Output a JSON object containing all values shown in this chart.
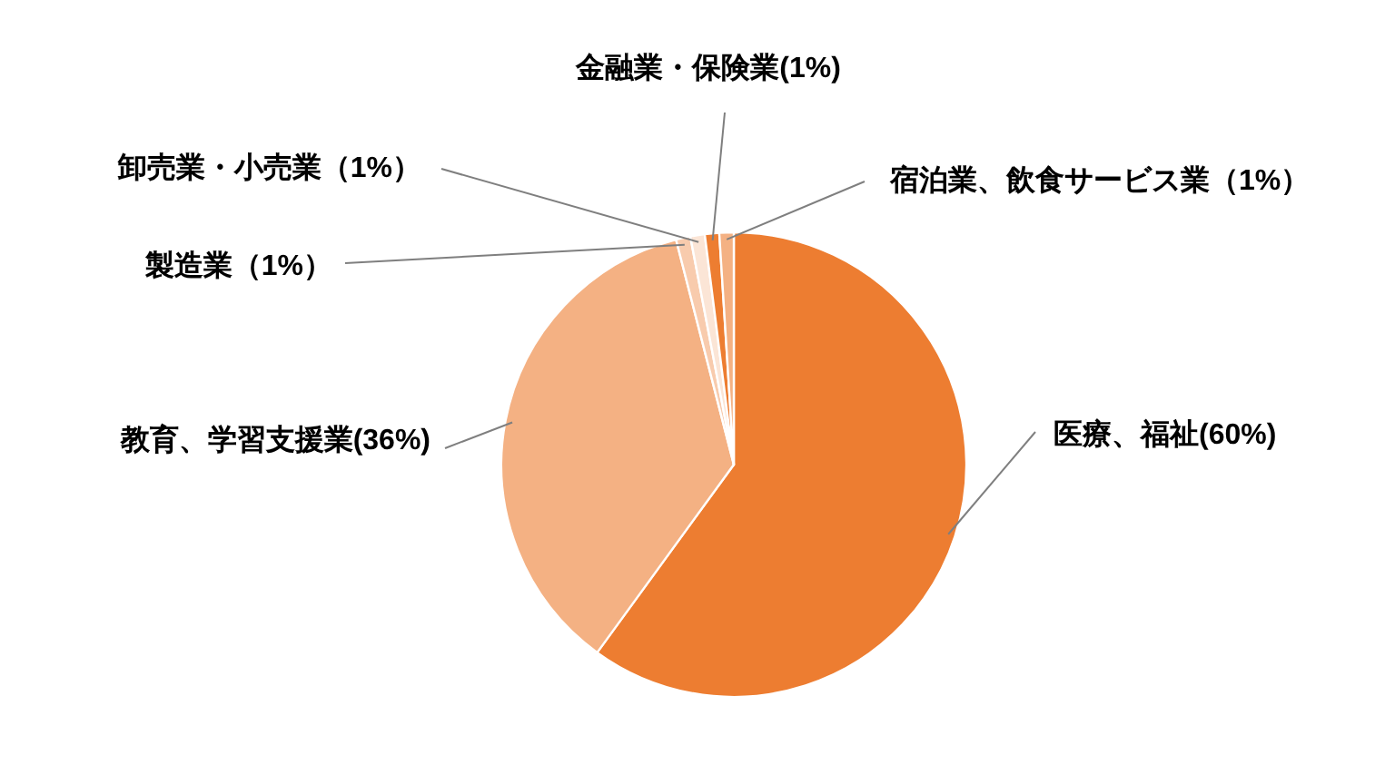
{
  "chart_data": {
    "type": "pie",
    "categories": [
      "医療、福祉",
      "教育、学習支援業",
      "製造業",
      "卸売業・小売業",
      "金融業・保険業",
      "宿泊業、飲食サービス業"
    ],
    "values": [
      60,
      36,
      1,
      1,
      1,
      1
    ],
    "colors": [
      "#ed7d31",
      "#f4b183",
      "#f8cbad",
      "#fbe5d6",
      "#ed7d31",
      "#f4b183"
    ],
    "value_labels": [
      "(60%)",
      "(36%)",
      "（1%）",
      "（1%）",
      "(1%)",
      "（1%）"
    ]
  }
}
